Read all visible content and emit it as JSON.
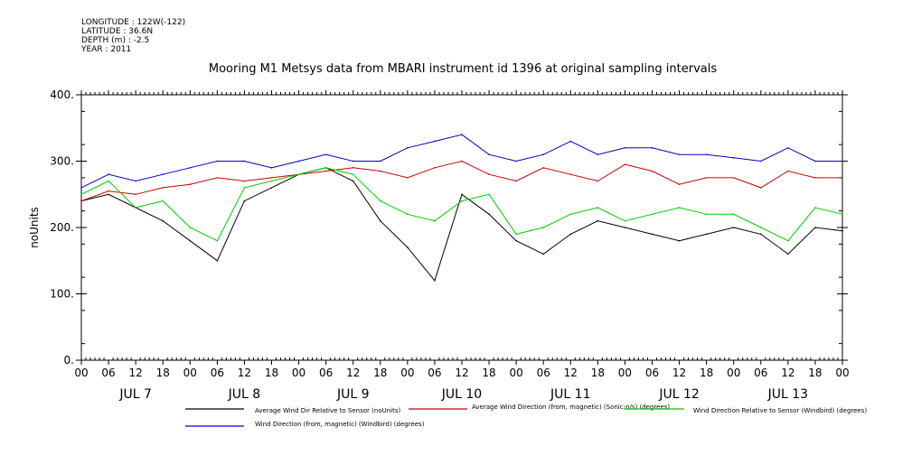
{
  "header": {
    "longitude": "LONGITUDE : 122W(-122)",
    "latitude": "LATITUDE : 36.6N",
    "depth": "DEPTH (m) : -2.5",
    "year": "YEAR : 2011"
  },
  "chart_data": {
    "type": "line",
    "title": "Mooring M1 Metsys data from MBARI instrument id 1396 at original sampling intervals",
    "ylabel": "noUnits",
    "xlabel": "",
    "ylim": [
      0,
      400
    ],
    "y_ticks": [
      "0.",
      "100.",
      "200.",
      "300.",
      "400."
    ],
    "x_hour_ticks": [
      "00",
      "06",
      "12",
      "18",
      "00",
      "06",
      "12",
      "18",
      "00",
      "06",
      "12",
      "18",
      "00",
      "06",
      "12",
      "18",
      "00",
      "06",
      "12",
      "18",
      "00",
      "06",
      "12",
      "18",
      "00",
      "06",
      "12",
      "18",
      "00"
    ],
    "x_day_labels": [
      "JUL  7",
      "JUL  8",
      "JUL  9",
      "JUL 10",
      "JUL 11",
      "JUL 12",
      "JUL 13"
    ],
    "grid": false,
    "legend_placement": "bottom",
    "series": [
      {
        "name": "Average Wind Dir Relative to Sensor (noUnits)",
        "color": "#000000",
        "x_hours": [
          0,
          6,
          12,
          18,
          24,
          30,
          36,
          42,
          48,
          54,
          60,
          66,
          72,
          78,
          84,
          90,
          96,
          102,
          108,
          114,
          120,
          126,
          132,
          138,
          144,
          150,
          156,
          162,
          168
        ],
        "values": [
          240,
          250,
          230,
          210,
          180,
          150,
          240,
          260,
          280,
          290,
          270,
          210,
          170,
          120,
          250,
          220,
          180,
          160,
          190,
          210,
          200,
          190,
          180,
          190,
          200,
          190,
          160,
          200,
          195
        ]
      },
      {
        "name": "Average Wind Direction (from, magnetic) (Sonic-n/s) (degrees)",
        "color": "#cc0000",
        "x_hours": [
          0,
          6,
          12,
          18,
          24,
          30,
          36,
          42,
          48,
          54,
          60,
          66,
          72,
          78,
          84,
          90,
          96,
          102,
          108,
          114,
          120,
          126,
          132,
          138,
          144,
          150,
          156,
          162,
          168
        ],
        "values": [
          240,
          255,
          250,
          260,
          265,
          275,
          270,
          275,
          280,
          285,
          290,
          285,
          275,
          290,
          300,
          280,
          270,
          290,
          280,
          270,
          295,
          285,
          265,
          275,
          275,
          260,
          285,
          275,
          275
        ]
      },
      {
        "name": "Wind Direction Relative to Sensor (Windbird) (degrees)",
        "color": "#00cc00",
        "x_hours": [
          0,
          6,
          12,
          18,
          24,
          30,
          36,
          42,
          48,
          54,
          60,
          66,
          72,
          78,
          84,
          90,
          96,
          102,
          108,
          114,
          120,
          126,
          132,
          138,
          144,
          150,
          156,
          162,
          168
        ],
        "values": [
          250,
          270,
          230,
          240,
          200,
          180,
          260,
          270,
          280,
          290,
          280,
          240,
          220,
          210,
          240,
          250,
          190,
          200,
          220,
          230,
          210,
          220,
          230,
          220,
          220,
          200,
          180,
          230,
          220
        ]
      },
      {
        "name": "Wind Direction (from, magnetic) (Windbird) (degrees)",
        "color": "#0000cc",
        "x_hours": [
          0,
          6,
          12,
          18,
          24,
          30,
          36,
          42,
          48,
          54,
          60,
          66,
          72,
          78,
          84,
          90,
          96,
          102,
          108,
          114,
          120,
          126,
          132,
          138,
          144,
          150,
          156,
          162,
          168
        ],
        "values": [
          260,
          280,
          270,
          280,
          290,
          300,
          300,
          290,
          300,
          310,
          300,
          300,
          320,
          330,
          340,
          310,
          300,
          310,
          330,
          310,
          320,
          320,
          310,
          310,
          305,
          300,
          320,
          300,
          300
        ]
      }
    ]
  }
}
